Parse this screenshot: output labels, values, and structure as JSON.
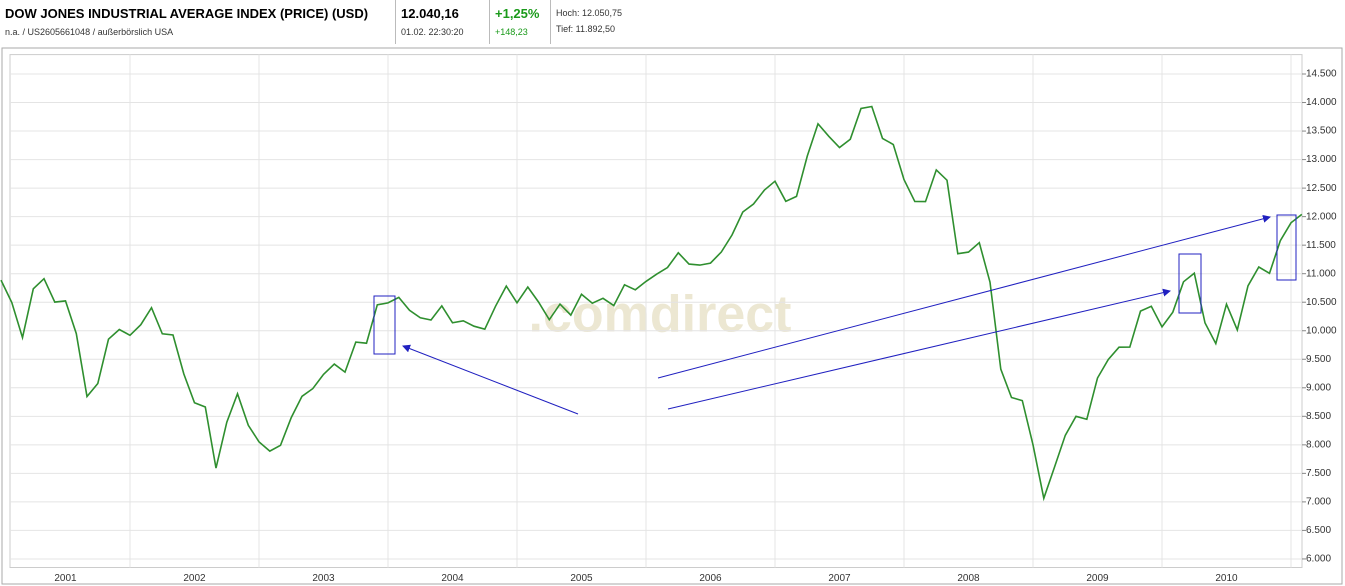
{
  "header": {
    "title": "DOW JONES INDUSTRIAL AVERAGE INDEX (PRICE) (USD)",
    "subtitle": "n.a. / US2605661048 / außerbörslich USA",
    "price": "12.040,16",
    "time": "01.02. 22:30:20",
    "change_percent": "+1,25%",
    "change_absolute": "+148,23",
    "high": "Hoch: 12.050,75",
    "low": "Tief: 11.892,50"
  },
  "chart_data": {
    "type": "line",
    "watermark": ".comdirect",
    "color": "#2f8f2f",
    "grid": true,
    "categories": [
      null,
      null,
      null,
      null,
      null,
      null,
      "2001",
      null,
      null,
      null,
      null,
      null,
      null,
      null,
      null,
      null,
      null,
      null,
      "2002",
      null,
      null,
      null,
      null,
      null,
      null,
      null,
      null,
      null,
      null,
      null,
      "2003",
      null,
      null,
      null,
      null,
      null,
      null,
      null,
      null,
      null,
      null,
      null,
      "2004",
      null,
      null,
      null,
      null,
      null,
      null,
      null,
      null,
      null,
      null,
      null,
      "2005",
      null,
      null,
      null,
      null,
      null,
      null,
      null,
      null,
      null,
      null,
      null,
      "2006",
      null,
      null,
      null,
      null,
      null,
      null,
      null,
      null,
      null,
      null,
      null,
      "2007",
      null,
      null,
      null,
      null,
      null,
      null,
      null,
      null,
      null,
      null,
      null,
      "2008",
      null,
      null,
      null,
      null,
      null,
      null,
      null,
      null,
      null,
      null,
      null,
      "2009",
      null,
      null,
      null,
      null,
      null,
      null,
      null,
      null,
      null,
      null,
      null,
      "2010",
      null,
      null,
      null,
      null,
      null,
      null,
      null
    ],
    "values": [
      10887,
      10495,
      9879,
      10735,
      10912,
      10502,
      10523,
      9950,
      8848,
      9075,
      9852,
      10021,
      9920,
      10106,
      10404,
      9946,
      9925,
      9243,
      8737,
      8664,
      7592,
      8397,
      8896,
      8342,
      8054,
      7891,
      7992,
      8480,
      8850,
      8985,
      9234,
      9416,
      9275,
      9801,
      9782,
      10454,
      10488,
      10584,
      10358,
      10226,
      10188,
      10435,
      10140,
      10174,
      10080,
      10027,
      10428,
      10783,
      10490,
      10766,
      10504,
      10193,
      10467,
      10275,
      10641,
      10482,
      10569,
      10440,
      10806,
      10718,
      10865,
      10993,
      11109,
      11367,
      11168,
      11150,
      11186,
      11381,
      11679,
      12081,
      12221,
      12463,
      12622,
      12269,
      12354,
      13063,
      13628,
      13409,
      13212,
      13358,
      13896,
      13930,
      13372,
      13265,
      12650,
      12266,
      12263,
      12820,
      12638,
      11350,
      11378,
      11544,
      10851,
      9325,
      8829,
      8776,
      8001,
      7063,
      7609,
      8168,
      8500,
      8447,
      9172,
      9496,
      9712,
      9713,
      10345,
      10428,
      10067,
      10325,
      10857,
      11009,
      10137,
      9774,
      10466,
      10015,
      10788,
      11118,
      11006,
      11578,
      11892,
      12040
    ],
    "ylim": [
      5850,
      14700
    ],
    "yticks": [
      {
        "value": 6000,
        "label": "6.000"
      },
      {
        "value": 6500,
        "label": "6.500"
      },
      {
        "value": 7000,
        "label": "7.000"
      },
      {
        "value": 7500,
        "label": "7.500"
      },
      {
        "value": 8000,
        "label": "8.000"
      },
      {
        "value": 8500,
        "label": "8.500"
      },
      {
        "value": 9000,
        "label": "9.000"
      },
      {
        "value": 9500,
        "label": "9.500"
      },
      {
        "value": 10000,
        "label": "10.000"
      },
      {
        "value": 10500,
        "label": "10.500"
      },
      {
        "value": 11000,
        "label": "11.000"
      },
      {
        "value": 11500,
        "label": "11.500"
      },
      {
        "value": 12000,
        "label": "12.000"
      },
      {
        "value": 12500,
        "label": "12.500"
      },
      {
        "value": 13000,
        "label": "13.000"
      },
      {
        "value": 13500,
        "label": "13.500"
      },
      {
        "value": 14000,
        "label": "14.000"
      },
      {
        "value": 14500,
        "label": "14.500"
      }
    ]
  }
}
